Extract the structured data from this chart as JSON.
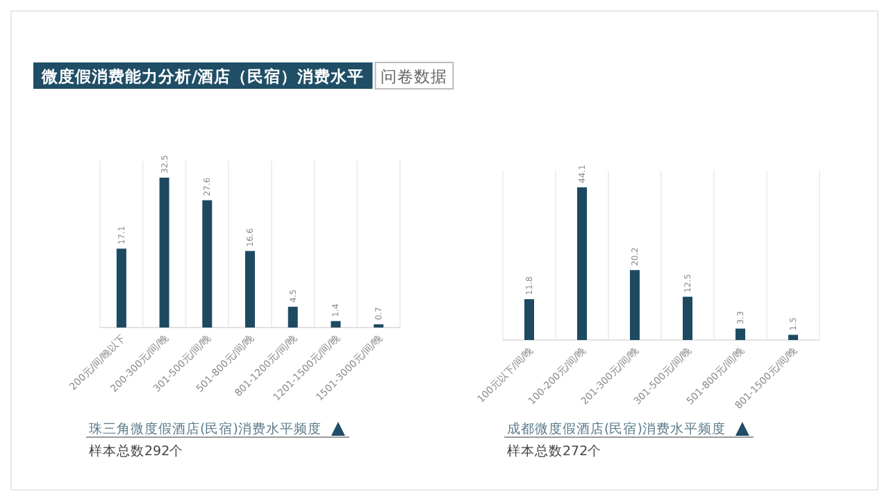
{
  "chart_data": [
    {
      "type": "bar",
      "title": "微度假消费能力分析/酒店（民宿）消费水平",
      "subtitle": "问卷数据",
      "xlabel": "珠三角微度假酒店(民宿)消费水平频度",
      "annotations": [
        "样本总数292个"
      ],
      "categories": [
        "200元/间/晚以下",
        "200-300元/间/晚",
        "301-500元/间/晚",
        "501-800元/间/晚",
        "801-1200元/间/晚",
        "1201-1500元/间/晚",
        "1501-3000元/间/晚"
      ],
      "series": [
        {
          "color": "#1d4a60",
          "values": [
            17.1,
            32.5,
            27.6,
            16.6,
            4.5,
            1.4,
            0.7
          ]
        }
      ],
      "data_labels": true,
      "grid": "x"
    },
    {
      "type": "bar",
      "xlabel": "成都微度假酒店(民宿)消费水平频度",
      "annotations": [
        "样本总数272个"
      ],
      "categories": [
        "100元以下/间/晚",
        "100-200元/间/晚",
        "201-300元/间/晚",
        "301-500元/间/晚",
        "501-800元/间/晚",
        "801-1500元/间/晚"
      ],
      "series": [
        {
          "color": "#1d4a60",
          "values": [
            11.8,
            44.1,
            20.2,
            12.5,
            3.3,
            1.5
          ]
        }
      ],
      "data_labels": true,
      "grid": "x"
    }
  ]
}
